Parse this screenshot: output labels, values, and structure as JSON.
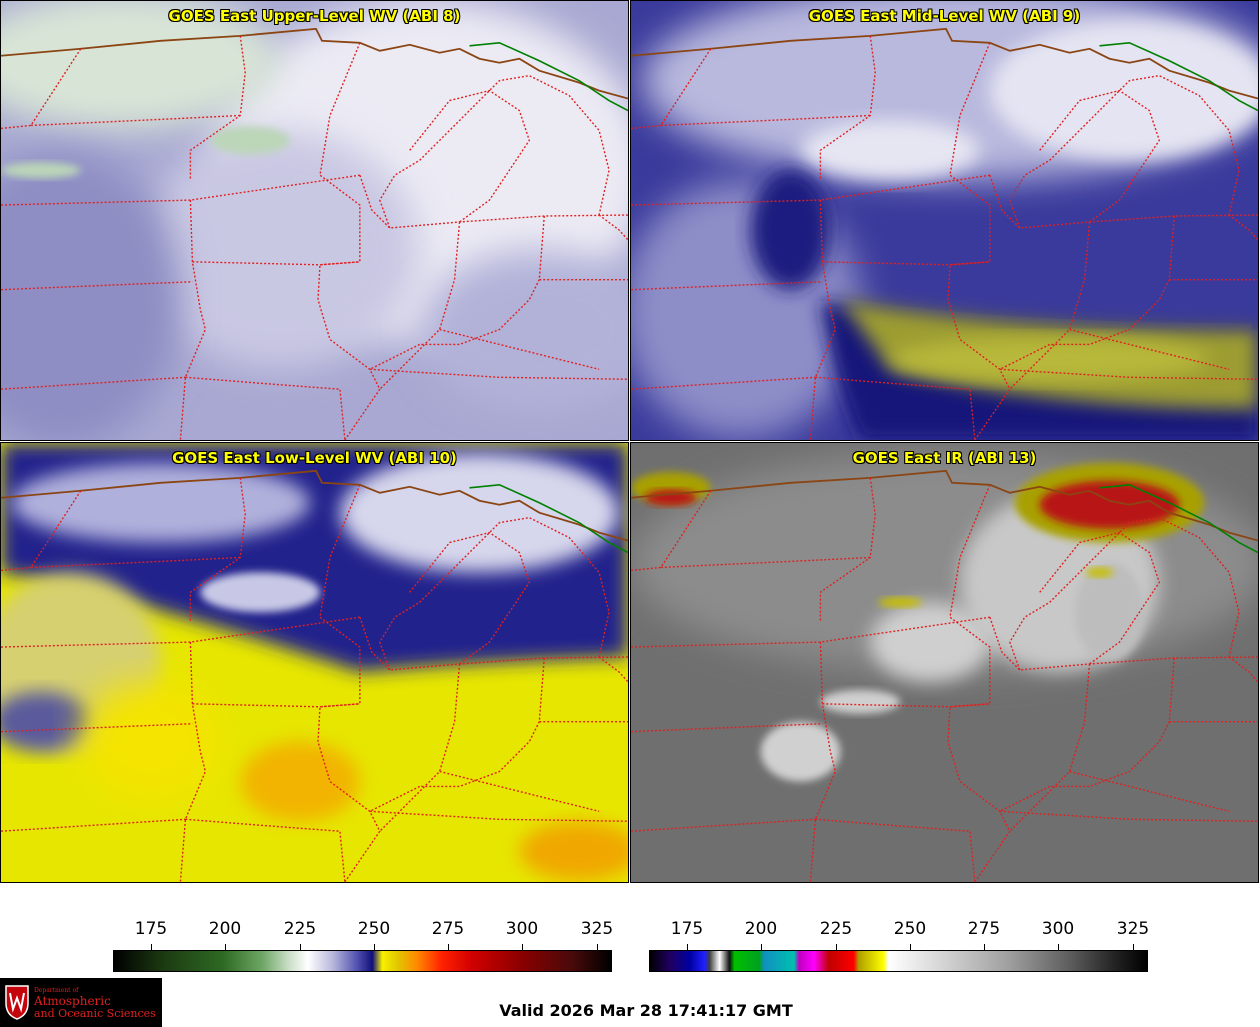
{
  "panels": [
    {
      "title": "GOES East Upper-Level WV (ABI 8)"
    },
    {
      "title": "GOES East Mid-Level WV (ABI 9)"
    },
    {
      "title": "GOES East Low-Level WV (ABI 10)"
    },
    {
      "title": "GOES East IR (ABI 13)"
    }
  ],
  "colorbars": {
    "wv": {
      "ticks": [
        "175",
        "200",
        "225",
        "250",
        "275",
        "300",
        "325"
      ]
    },
    "ir": {
      "ticks": [
        "175",
        "200",
        "225",
        "250",
        "275",
        "300",
        "325"
      ]
    }
  },
  "logo": {
    "line1": "Department of",
    "line2": "Atmospheric",
    "line3": "and Oceanic Sciences"
  },
  "valid_time": "Valid 2026 Mar 28 17:41:17 GMT",
  "colors": {
    "title_text": "#ffff00",
    "state_border": "#e02020",
    "country_border": "#8b4513",
    "lake_border": "#008000"
  }
}
